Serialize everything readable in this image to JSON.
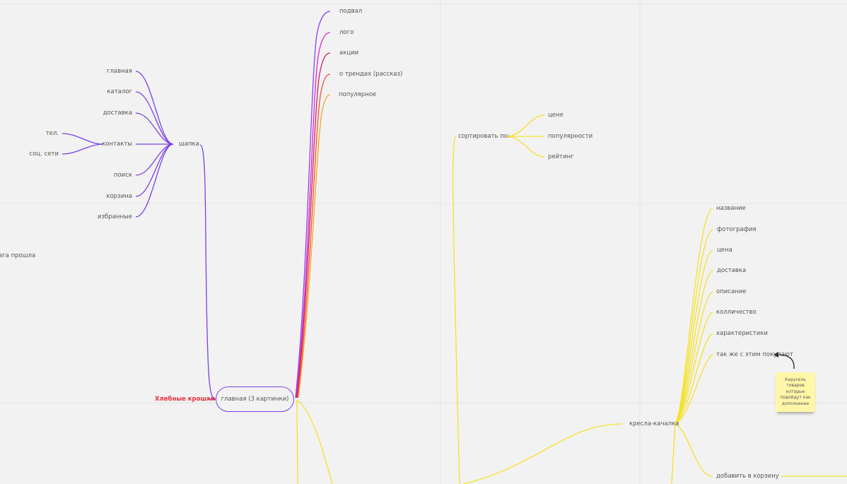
{
  "colors": {
    "background": "#f2f2f2",
    "purple": "#7b3fe4",
    "magenta": "#e020d0",
    "crimson": "#d0205a",
    "orange_red": "#f05030",
    "orange": "#f5a623",
    "yellow": "#f5e22a",
    "breadcrumb_red": "#e8303a",
    "sticky": "#fff6a8"
  },
  "root": {
    "label": "главная (3 картинки)",
    "breadcrumb": "Хлебные крошки"
  },
  "header": {
    "label": "шапка",
    "items": [
      "главная",
      "каталог",
      "доставка",
      "контакты",
      "поиск",
      "корзина",
      "избранные"
    ],
    "contacts": [
      "тел.",
      "соц. сети"
    ]
  },
  "top_branches": [
    "подвал",
    "лого",
    "акции",
    "о трендах (рассказ)",
    "популярное"
  ],
  "cut_text": "ага прошла",
  "sort": {
    "label": "сортировать по:",
    "options": [
      "цене",
      "популярности",
      "рейтинг"
    ]
  },
  "product": {
    "label": "кресла-качалка",
    "fields": [
      "название",
      "фотография",
      "цена",
      "доставка",
      "описание",
      "колличество",
      "характеристики",
      "так же с этим покупают"
    ],
    "add_to_cart": "добавить в корзину"
  },
  "sticky_note": "Карусель товаров которые подойдут как дополнение"
}
